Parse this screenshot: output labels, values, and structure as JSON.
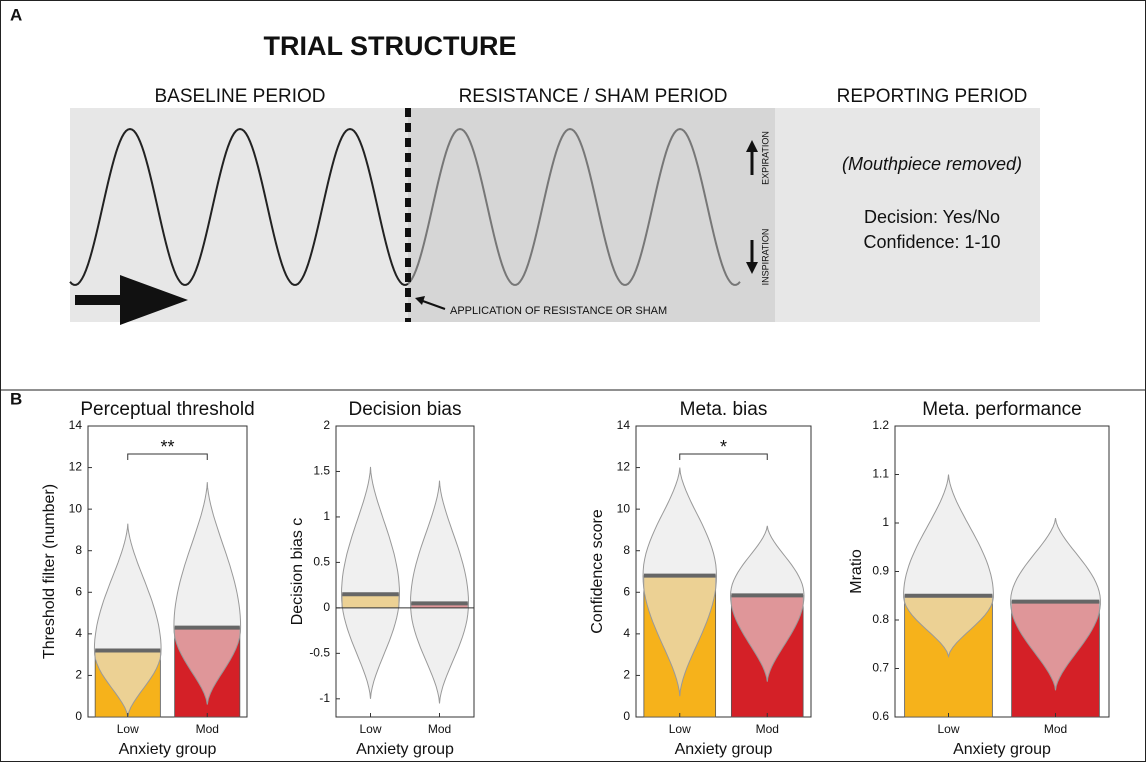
{
  "panel_a": {
    "label": "A",
    "title": "TRIAL STRUCTURE",
    "periods": [
      "BASELINE PERIOD",
      "RESISTANCE / SHAM PERIOD",
      "REPORTING PERIOD"
    ],
    "expiration": "EXPIRATION",
    "inspiration": "INSPIRATION",
    "mouthpiece": "(Mouthpiece removed)",
    "decision": "Decision: Yes/No",
    "confidence": "Confidence: 1-10",
    "application": "APPLICATION OF RESISTANCE OR SHAM"
  },
  "panel_b": {
    "label": "B"
  },
  "chart_data": [
    {
      "type": "bar",
      "title": "Perceptual threshold",
      "ylabel": "Threshold filter (number)",
      "xlabel": "Anxiety group",
      "categories": [
        "Low",
        "Mod"
      ],
      "values": [
        3.2,
        4.3
      ],
      "colors": [
        "#f6b21b",
        "#d42027"
      ],
      "ranges": [
        [
          0,
          9.3
        ],
        [
          0.6,
          11.3
        ]
      ],
      "annotation": "**",
      "ylim": [
        0,
        14
      ],
      "yticks": [
        0,
        2,
        4,
        6,
        8,
        10,
        12,
        14
      ]
    },
    {
      "type": "bar",
      "title": "Decision bias",
      "ylabel": "Decision bias  c",
      "xlabel": "Anxiety group",
      "categories": [
        "Low",
        "Mod"
      ],
      "values": [
        0.15,
        0.05
      ],
      "colors": [
        "#f6b21b",
        "#d42027"
      ],
      "ranges": [
        [
          -1.0,
          1.55
        ],
        [
          -1.05,
          1.4
        ]
      ],
      "ylim": [
        -1.2,
        2
      ],
      "yticks": [
        -1,
        -0.5,
        0,
        0.5,
        1,
        1.5,
        2
      ]
    },
    {
      "type": "bar",
      "title": "Meta. bias",
      "ylabel": "Confidence score",
      "xlabel": "Anxiety group",
      "categories": [
        "Low",
        "Mod"
      ],
      "values": [
        6.8,
        5.85
      ],
      "colors": [
        "#f6b21b",
        "#d42027"
      ],
      "ranges": [
        [
          1.0,
          12.0
        ],
        [
          1.7,
          9.2
        ]
      ],
      "annotation": "*",
      "ylim": [
        0,
        14
      ],
      "yticks": [
        0,
        2,
        4,
        6,
        8,
        10,
        12,
        14
      ]
    },
    {
      "type": "bar",
      "title": "Meta. performance",
      "ylabel": "Mratio",
      "xlabel": "Anxiety group",
      "categories": [
        "Low",
        "Mod"
      ],
      "values": [
        0.85,
        0.838
      ],
      "colors": [
        "#f6b21b",
        "#d42027"
      ],
      "ranges": [
        [
          0.725,
          1.1
        ],
        [
          0.655,
          1.01
        ]
      ],
      "ylim": [
        0.6,
        1.2
      ],
      "yticks": [
        0.6,
        0.7,
        0.8,
        0.9,
        1,
        1.1,
        1.2
      ]
    }
  ]
}
